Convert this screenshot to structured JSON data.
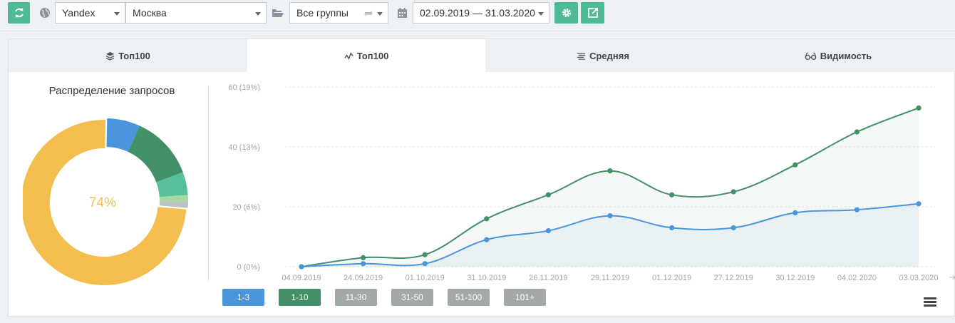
{
  "toolbar": {
    "engine": "Yandex",
    "region": "Москва",
    "group": "Все группы",
    "date_range": "02.09.2019 — 31.03.2020"
  },
  "tabs": [
    {
      "label": "Топ100",
      "icon": "layers-icon"
    },
    {
      "label": "Топ100",
      "icon": "line-chart-icon"
    },
    {
      "label": "Средняя",
      "icon": "lines-icon"
    },
    {
      "label": "Видимость",
      "icon": "glasses-icon"
    }
  ],
  "donut": {
    "title": "Распределение запросов",
    "center_label": "74%",
    "center_color": "#f4be4e",
    "segments": [
      {
        "name": "1-3",
        "value": 6.5,
        "color": "#4a95dc"
      },
      {
        "name": "1-10",
        "value": 12.5,
        "color": "#428f68"
      },
      {
        "name": "11-30",
        "value": 4.5,
        "color": "#57bf9c"
      },
      {
        "name": "31-50",
        "value": 1.2,
        "color": "#a8d9a0"
      },
      {
        "name": "51-100",
        "value": 1.3,
        "color": "#b9c4c0"
      },
      {
        "name": "101+",
        "value": 74,
        "color": "#f4be4e"
      }
    ]
  },
  "chart_data": {
    "type": "area",
    "x": [
      "04.09.2019",
      "24.09.2019",
      "01.10.2019",
      "31.10.2019",
      "26.11.2019",
      "29.11.2019",
      "01.12.2019",
      "27.12.2019",
      "30.12.2019",
      "04.02.2020",
      "03.03.2020"
    ],
    "y_ticks": [
      "0 (0%)",
      "20 (6%)",
      "40 (13%)",
      "60 (19%)"
    ],
    "ylim": [
      0,
      60
    ],
    "series": [
      {
        "name": "1-10",
        "color": "#428f68",
        "values": [
          0,
          3,
          4,
          16,
          24,
          32,
          24,
          25,
          34,
          45,
          53
        ]
      },
      {
        "name": "1-3",
        "color": "#4a95dc",
        "values": [
          0,
          1,
          1,
          9,
          12,
          17,
          13,
          13,
          18,
          19,
          21
        ]
      }
    ],
    "grid": true
  },
  "legend": [
    {
      "label": "1-3",
      "color": "#4a95dc"
    },
    {
      "label": "1-10",
      "color": "#428f68"
    },
    {
      "label": "11-30",
      "color": "#a3a9a8"
    },
    {
      "label": "31-50",
      "color": "#a3a9a8"
    },
    {
      "label": "51-100",
      "color": "#a3a9a8"
    },
    {
      "label": "101+",
      "color": "#a3a9a8"
    }
  ]
}
